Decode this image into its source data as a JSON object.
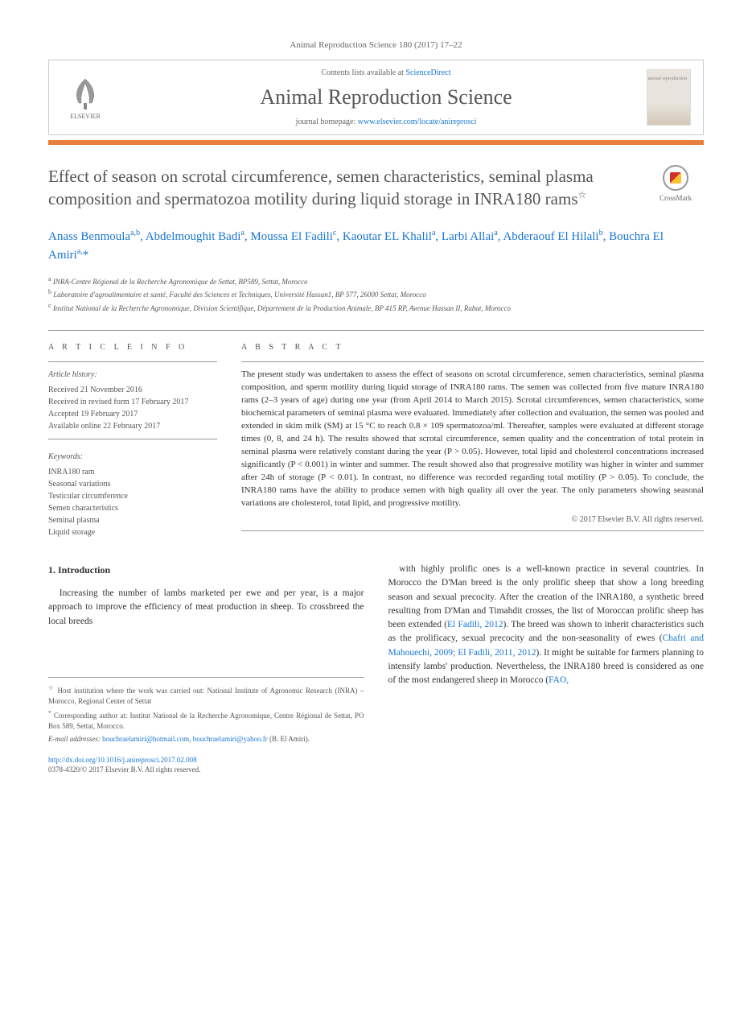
{
  "header": {
    "citation": "Animal Reproduction Science 180 (2017) 17–22",
    "contents_prefix": "Contents lists available at ",
    "contents_link": "ScienceDirect",
    "journal_name": "Animal Reproduction Science",
    "homepage_prefix": "journal homepage: ",
    "homepage_url": "www.elsevier.com/locate/anireprosci",
    "publisher": "ELSEVIER",
    "cover_label": "animal reproduction"
  },
  "crossmark": {
    "label": "CrossMark"
  },
  "article": {
    "title": "Effect of season on scrotal circumference, semen characteristics, seminal plasma composition and spermatozoa motility during liquid storage in INRA180 rams",
    "title_note": "☆",
    "authors_html": "Anass Benmoula<sup>a,b</sup>, Abdelmoughit Badi<sup>a</sup>, Moussa El Fadili<sup>c</sup>, Kaoutar EL Khalil<sup>a</sup>, Larbi Allai<sup>a</sup>, Abderaouf El Hilali<sup>b</sup>, Bouchra El Amiri<sup>a,</sup><span class='asterisk'>*</span>",
    "affiliations": [
      {
        "sup": "a",
        "text": "INRA-Centre Régional de la Recherche Agronomique de Settat, BP589, Settat, Morocco"
      },
      {
        "sup": "b",
        "text": "Laboratoire d'agroalimentaire et santé, Faculté des Sciences et Techniques, Université Hassan1, BP 577, 26000 Settat, Morocco"
      },
      {
        "sup": "c",
        "text": "Institut National de la Recherche Agronomique, Division Scientifique, Département de la Production Animale, BP 415 RP, Avenue Hassan II, Rabat, Morocco"
      }
    ]
  },
  "article_info": {
    "heading": "A R T I C L E  I N F O",
    "history_label": "Article history:",
    "history": [
      "Received 21 November 2016",
      "Received in revised form 17 February 2017",
      "Accepted 19 February 2017",
      "Available online 22 February 2017"
    ],
    "keywords_label": "Keywords:",
    "keywords": [
      "INRA180 ram",
      "Seasonal variations",
      "Testicular circumference",
      "Semen characteristics",
      "Seminal plasma",
      "Liquid storage"
    ]
  },
  "abstract": {
    "heading": "A B S T R A C T",
    "text": "The present study was undertaken to assess the effect of seasons on scrotal circumference, semen characteristics, seminal plasma composition, and sperm motility during liquid storage of INRA180 rams. The semen was collected from five mature INRA180 rams (2–3 years of age) during one year (from April 2014 to March 2015). Scrotal circumferences, semen characteristics, some biochemical parameters of seminal plasma were evaluated. Immediately after collection and evaluation, the semen was pooled and extended in skim milk (SM) at 15 °C to reach 0.8 × 109 spermatozoa/ml. Thereafter, samples were evaluated at different storage times (0, 8, and 24 h). The results showed that scrotal circumference, semen quality and the concentration of total protein in seminal plasma were relatively constant during the year (P > 0.05). However, total lipid and cholesterol concentrations increased significantly (P < 0.001) in winter and summer. The result showed also that progressive motility was higher in winter and summer after 24h of storage (P < 0.01). In contrast, no difference was recorded regarding total motility (P > 0.05). To conclude, the INRA180 rams have the ability to produce semen with high quality all over the year. The only parameters showing seasonal variations are cholesterol, total lipid, and progressive motility.",
    "copyright": "© 2017 Elsevier B.V. All rights reserved."
  },
  "body": {
    "section_heading": "1. Introduction",
    "col1": "Increasing the number of lambs marketed per ewe and per year, is a major approach to improve the efficiency of meat production in sheep. To crossbreed the local breeds",
    "col2_p1": "with highly prolific ones is a well-known practice in several countries. In Morocco the D'Man breed is the only prolific sheep that show a long breeding season and sexual precocity. After the creation of the INRA180, a synthetic breed resulting from D'Man and Timahdit crosses, the list of Moroccan prolific sheep has been extended (",
    "col2_cite1": "El Fadili, 2012",
    "col2_p2": "). The breed was shown to inherit characteristics such as the prolificacy, sexual precocity and the non-seasonality of ewes (",
    "col2_cite2": "Chafri and Mahouechi, 2009; El Fadili, 2011, 2012",
    "col2_p3": "). It might be suitable for farmers planning to intensify lambs' production. Nevertheless, the INRA180 breed is considered as one of the most endangered sheep in Morocco (",
    "col2_cite3": "FAO,"
  },
  "footnotes": {
    "host": "Host institution where the work was carried out: National Institute of Agronomic Research (INRA) – Morocco, Regional Center of Settat",
    "corr_label": "Corresponding author at: Institut National de la Recherche Agronomique, Centre Régional de Settat, PO Box 589, Settat, Morocco.",
    "email_label": "E-mail addresses:",
    "email1": "bouchraelamiri@hotmail.com",
    "email2": "bouchraelamiri@yahoo.fr",
    "email_suffix": "(B. El Amiri).",
    "doi": "http://dx.doi.org/10.1016/j.anireprosci.2017.02.008",
    "issn": "0378-4320/© 2017 Elsevier B.V. All rights reserved."
  },
  "colors": {
    "accent_orange": "#e87d3e",
    "link_blue": "#1976d2",
    "text_gray": "#555555",
    "body_text": "#333333"
  }
}
